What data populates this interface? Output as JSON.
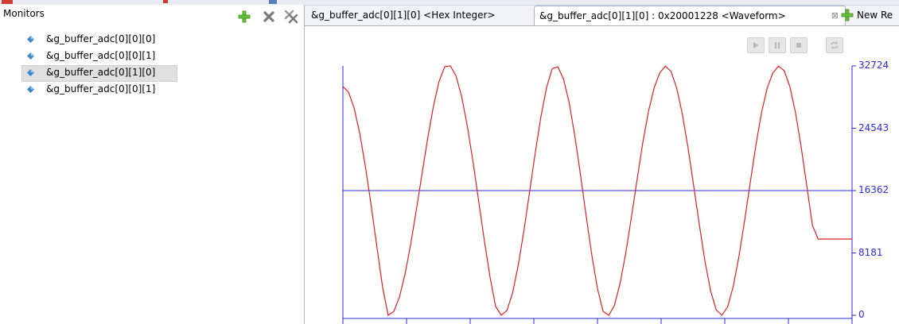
{
  "left_panel": {
    "title": "Monitors",
    "tools": [
      "add-monitor",
      "remove-monitor",
      "remove-all-monitors"
    ],
    "items": [
      {
        "label": "&g_buffer_adc[0][0][0]",
        "selected": false
      },
      {
        "label": "&g_buffer_adc[0][0][1]",
        "selected": false
      },
      {
        "label": "&g_buffer_adc[0][1][0]",
        "selected": true
      },
      {
        "label": "&g_buffer_adc[0][0][1]",
        "selected": false
      }
    ]
  },
  "tabs": [
    {
      "label": "&g_buffer_adc[0][1][0] <Hex Integer>",
      "active": false
    },
    {
      "label": "&g_buffer_adc[0][1][0] : 0x20001228 <Waveform>",
      "active": true,
      "close": "⊠"
    },
    {
      "label": "New Re",
      "active": false
    }
  ],
  "controls": [
    "play",
    "pause",
    "stop",
    "loop"
  ],
  "chart_data": {
    "type": "line",
    "title": "",
    "xlabel": "",
    "ylabel": "",
    "ylim": [
      0,
      32724
    ],
    "y_ticks": [
      32724,
      24543,
      16362,
      8181,
      0
    ],
    "reference_line": 16362,
    "series": [
      {
        "color": "#e02020",
        "x": [
          0,
          1,
          2,
          3,
          4,
          5,
          6,
          7,
          8,
          9,
          10,
          11,
          12,
          13,
          14,
          15,
          16,
          17,
          18,
          19,
          20,
          21,
          22,
          23,
          24,
          25,
          26,
          27,
          28,
          29,
          30,
          31,
          32,
          33,
          34,
          35,
          36,
          37,
          38,
          39,
          40,
          41,
          42,
          43,
          44,
          45,
          46,
          47,
          48,
          49,
          50,
          51,
          52,
          53,
          54,
          55,
          56,
          57,
          58,
          59,
          60,
          61,
          62,
          63,
          64,
          65,
          66,
          67,
          68,
          69,
          70,
          71,
          72,
          73,
          74,
          75,
          76,
          77,
          78,
          79,
          80,
          81,
          82,
          83,
          84,
          85,
          86,
          87,
          88,
          89,
          90
        ],
        "values": [
          30000,
          29279,
          27166,
          23806,
          19435,
          14378,
          9012,
          3751,
          0,
          500,
          2400,
          5436,
          9368,
          13888,
          18650,
          23284,
          27419,
          30704,
          32631,
          32724,
          31400,
          28703,
          24829,
          20119,
          14970,
          9800,
          5049,
          1147,
          0,
          636,
          2941,
          6570,
          11138,
          16201,
          21330,
          26059,
          29900,
          32378,
          32600,
          31000,
          27900,
          23500,
          18400,
          13000,
          7900,
          3500,
          500,
          0,
          1300,
          4200,
          8200,
          12900,
          17800,
          22600,
          26700,
          29800,
          31800,
          32700,
          32000,
          29800,
          26400,
          22000,
          17000,
          11900,
          7100,
          3200,
          700,
          0,
          1100,
          3800,
          7700,
          12400,
          17400,
          22300,
          26600,
          29800,
          31800,
          32700,
          32100,
          30000,
          26600,
          22100,
          17000,
          11800,
          10000,
          10000,
          10000,
          10000,
          10000,
          10000,
          10000
        ]
      }
    ]
  }
}
